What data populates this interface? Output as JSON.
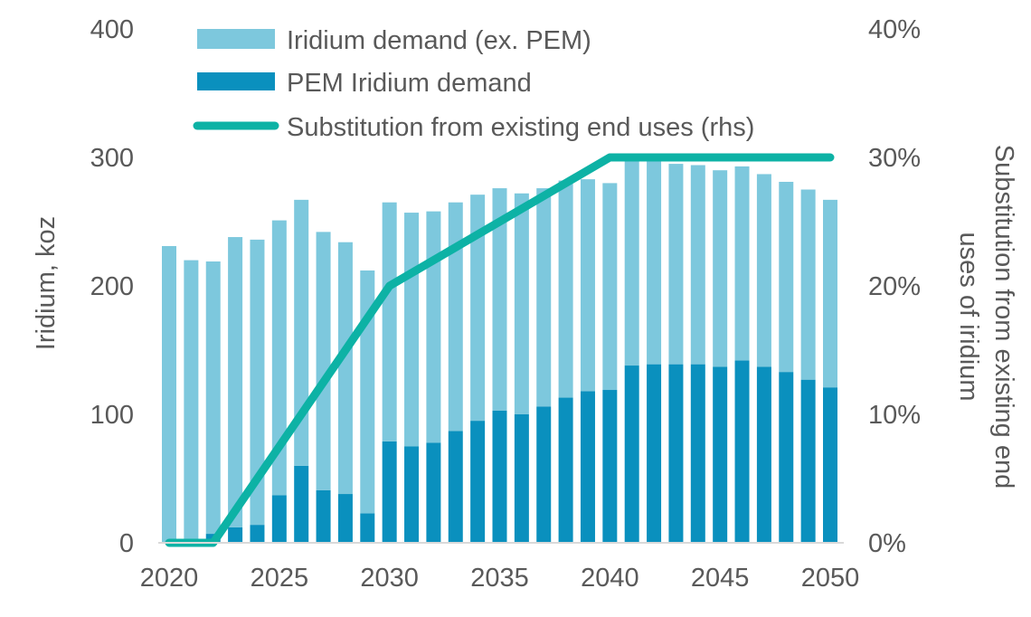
{
  "chart_data": {
    "type": "bar",
    "stacked": true,
    "title": "",
    "xlabel": "",
    "ylabel": "Iridium, koz",
    "y2label_line1": "Substitution from existing end",
    "y2label_line2": "uses of iridium",
    "ylim": [
      0,
      400
    ],
    "y2lim": [
      0,
      0.4
    ],
    "yticks": [
      "0",
      "100",
      "200",
      "300",
      "400"
    ],
    "y2ticks": [
      "0%",
      "10%",
      "20%",
      "30%",
      "40%"
    ],
    "xticks": [
      "2020",
      "2025",
      "2030",
      "2035",
      "2040",
      "2045",
      "2050"
    ],
    "grid": false,
    "legend_position": "top",
    "x": [
      2020,
      2021,
      2022,
      2023,
      2024,
      2025,
      2026,
      2027,
      2028,
      2029,
      2030,
      2031,
      2032,
      2033,
      2034,
      2035,
      2036,
      2037,
      2038,
      2039,
      2040,
      2041,
      2042,
      2043,
      2044,
      2045,
      2046,
      2047,
      2048,
      2049,
      2050
    ],
    "series": [
      {
        "name": "Iridium demand (ex. PEM)",
        "kind": "bar",
        "axis": "left",
        "color": "#7DC8DD",
        "values": [
          231,
          220,
          212,
          226,
          222,
          214,
          207,
          201,
          196,
          189,
          186,
          182,
          180,
          178,
          176,
          173,
          172,
          170,
          169,
          165,
          161,
          161,
          159,
          156,
          155,
          153,
          151,
          150,
          148,
          148,
          146
        ]
      },
      {
        "name": "PEM Iridium demand",
        "kind": "bar",
        "axis": "left",
        "color": "#0A90BE",
        "values": [
          0,
          0,
          7,
          12,
          14,
          37,
          60,
          41,
          38,
          23,
          79,
          75,
          78,
          87,
          95,
          103,
          100,
          106,
          113,
          118,
          119,
          138,
          139,
          139,
          139,
          137,
          142,
          137,
          133,
          127,
          121
        ]
      },
      {
        "name": "Substitution from existing end uses (rhs)",
        "kind": "line",
        "axis": "right",
        "color": "#0DB2A5",
        "points": [
          [
            2020,
            0.0
          ],
          [
            2022,
            0.0
          ],
          [
            2030,
            0.2
          ],
          [
            2040,
            0.3
          ],
          [
            2050,
            0.3
          ]
        ]
      }
    ]
  }
}
